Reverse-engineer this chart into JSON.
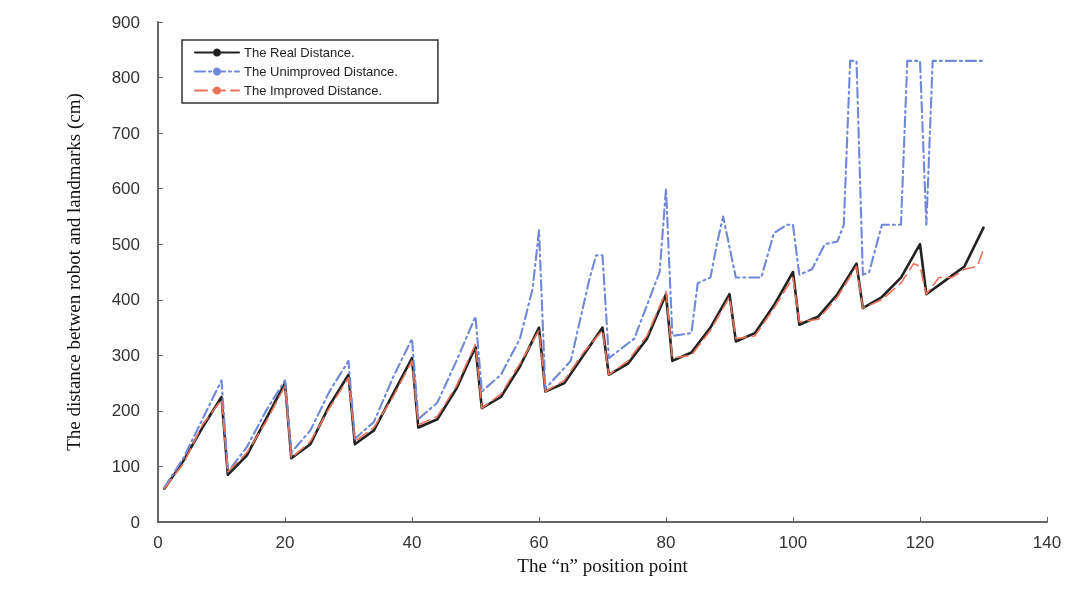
{
  "chart_data": {
    "type": "line",
    "xlabel": "The “n” position point",
    "ylabel": "The distance betwen robot and landmarks (cm)",
    "xlim": [
      0,
      140
    ],
    "xticks": [
      0,
      20,
      40,
      60,
      80,
      100,
      120,
      140
    ],
    "ylim": [
      0,
      900
    ],
    "yticks": [
      0,
      100,
      200,
      300,
      400,
      500,
      600,
      700,
      800,
      900
    ],
    "grid": false,
    "legend": "top left",
    "marker": "none",
    "series": [
      {
        "name": "The Real Distance.",
        "color": "#222222",
        "line_style": "solid",
        "x": [
          1,
          4,
          7,
          10,
          11,
          14,
          17,
          20,
          21,
          24,
          27,
          30,
          31,
          34,
          37,
          40,
          41,
          44,
          47,
          50,
          51,
          54,
          57,
          60,
          61,
          64,
          67,
          70,
          71,
          74,
          77,
          80,
          81,
          84,
          87,
          90,
          91,
          94,
          97,
          100,
          101,
          104,
          107,
          110,
          111,
          114,
          117,
          120,
          121,
          124,
          127,
          130
        ],
        "values": [
          60,
          110,
          170,
          225,
          85,
          120,
          185,
          250,
          115,
          140,
          210,
          265,
          140,
          165,
          230,
          295,
          170,
          185,
          240,
          315,
          205,
          225,
          280,
          350,
          235,
          250,
          300,
          350,
          265,
          285,
          330,
          410,
          290,
          305,
          350,
          410,
          325,
          340,
          390,
          450,
          355,
          370,
          410,
          465,
          385,
          405,
          440,
          500,
          410,
          435,
          460,
          530
        ]
      },
      {
        "name": "The Unimproved Distance.",
        "color": "#6f88d8",
        "line_style": "dashdot",
        "x": [
          1,
          4,
          7,
          10,
          11,
          14,
          17,
          20,
          21,
          24,
          27,
          30,
          31,
          34,
          37,
          40,
          41,
          44,
          47,
          50,
          51,
          54,
          57,
          59,
          60,
          61,
          63,
          65,
          68,
          69,
          70,
          71,
          75,
          79,
          80,
          81,
          84,
          85,
          87,
          88,
          89,
          91,
          95,
          97,
          99,
          100,
          101,
          103,
          105,
          107,
          108,
          109,
          110,
          111,
          112,
          114,
          117,
          118,
          120,
          121,
          122,
          130
        ],
        "values": [
          62,
          115,
          185,
          255,
          90,
          135,
          200,
          255,
          125,
          165,
          235,
          290,
          150,
          180,
          260,
          330,
          185,
          215,
          290,
          370,
          235,
          265,
          330,
          420,
          525,
          240,
          265,
          290,
          440,
          480,
          480,
          295,
          330,
          450,
          600,
          335,
          340,
          430,
          440,
          500,
          550,
          440,
          440,
          520,
          535,
          535,
          445,
          455,
          500,
          505,
          535,
          830,
          830,
          445,
          450,
          535,
          535,
          830,
          830,
          535,
          830,
          830
        ]
      },
      {
        "name": "The Improved Distance.",
        "color": "#e8735a",
        "line_style": "dashed",
        "x": [
          1,
          4,
          7,
          10,
          11,
          14,
          17,
          20,
          21,
          24,
          27,
          30,
          31,
          34,
          37,
          40,
          41,
          44,
          47,
          50,
          51,
          54,
          57,
          60,
          61,
          64,
          67,
          70,
          71,
          74,
          77,
          80,
          81,
          84,
          87,
          90,
          91,
          94,
          97,
          100,
          101,
          104,
          107,
          110,
          111,
          114,
          117,
          119,
          120,
          121,
          123,
          125,
          127,
          129,
          130
        ],
        "values": [
          60,
          105,
          175,
          220,
          90,
          125,
          180,
          245,
          115,
          145,
          205,
          260,
          145,
          170,
          225,
          290,
          175,
          190,
          245,
          320,
          205,
          230,
          285,
          345,
          235,
          255,
          305,
          345,
          265,
          290,
          335,
          415,
          295,
          300,
          345,
          405,
          330,
          335,
          385,
          440,
          360,
          365,
          405,
          460,
          385,
          400,
          430,
          465,
          460,
          410,
          440,
          440,
          455,
          460,
          490
        ]
      }
    ]
  }
}
